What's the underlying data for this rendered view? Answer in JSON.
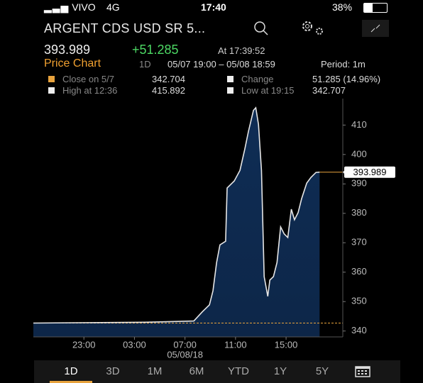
{
  "status_bar": {
    "carrier": "VIVO",
    "network": "4G",
    "time": "17:40",
    "battery": "38%"
  },
  "header": {
    "title": "ARGENT CDS USD SR 5..."
  },
  "quote": {
    "price": "393.989",
    "change": "+51.285",
    "time": "At 17:39:52"
  },
  "chart_header": {
    "title": "Price Chart",
    "period_button": "1D",
    "range": "05/07 19:00 – 05/08 18:59",
    "period": "Period: 1m"
  },
  "stats": [
    {
      "label": "Close on 5/7",
      "value": "342.704"
    },
    {
      "label": "Change",
      "value": "51.285 (14.96%)"
    },
    {
      "label": "High at 12:36",
      "value": "415.892"
    },
    {
      "label": "Low at 19:15",
      "value": "342.707"
    }
  ],
  "chart_data": {
    "type": "area",
    "x": [
      "19:00",
      "03:53",
      "07:42",
      "08:22",
      "08:56",
      "09:13",
      "09:30",
      "09:46",
      "10:13",
      "10:20",
      "10:54",
      "11:21",
      "11:44",
      "12:01",
      "12:25",
      "12:36",
      "12:49",
      "13:03",
      "13:16",
      "13:33",
      "13:43",
      "14:00",
      "14:17",
      "14:34",
      "14:51",
      "15:08",
      "15:25",
      "15:40",
      "15:57",
      "16:14",
      "16:38",
      "16:58",
      "17:22",
      "17:39"
    ],
    "values": [
      342.7,
      343.0,
      343.4,
      346.5,
      348.9,
      353.7,
      363.3,
      369.3,
      370.5,
      388.6,
      391.0,
      394.6,
      401.8,
      407.8,
      415.0,
      415.9,
      410.2,
      394.6,
      358.5,
      351.8,
      357.3,
      358.5,
      363.3,
      375.4,
      373.0,
      371.8,
      381.4,
      377.8,
      380.2,
      385.0,
      390.3,
      392.2,
      393.9,
      393.989
    ],
    "xlim": [
      "19:00",
      "18:59"
    ],
    "xticks": [
      "23:00",
      "03:00",
      "07:00",
      "11:00",
      "15:00"
    ],
    "date_label": "05/08/18",
    "ylim": [
      338,
      419
    ],
    "yticks": [
      340,
      350,
      360,
      370,
      380,
      390,
      400,
      410
    ],
    "close_value": 342.704,
    "last_value": 393.989,
    "color": "#0f2d55",
    "line_color": "#e6e6e6",
    "ref_color": "#e8a33d"
  },
  "tabs": [
    "1D",
    "3D",
    "1M",
    "6M",
    "YTD",
    "1Y",
    "5Y"
  ],
  "selected_tab": "1D"
}
